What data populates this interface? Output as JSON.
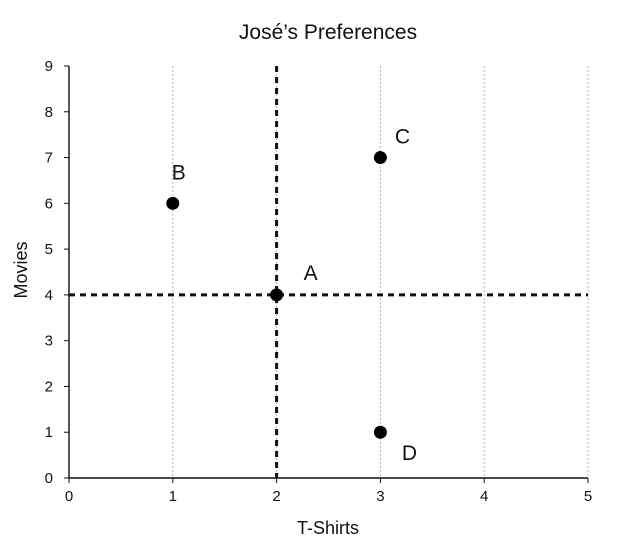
{
  "chart_data": {
    "type": "scatter",
    "title": "José’s Preferences",
    "xlabel": "T-Shirts",
    "ylabel": "Movies",
    "xlim": [
      0,
      5
    ],
    "ylim": [
      0,
      9
    ],
    "xticks": [
      0,
      1,
      2,
      3,
      4,
      5
    ],
    "yticks": [
      0,
      1,
      2,
      3,
      4,
      5,
      6,
      7,
      8,
      9
    ],
    "grid": true,
    "points": [
      {
        "label": "A",
        "x": 2,
        "y": 4
      },
      {
        "label": "B",
        "x": 1,
        "y": 6
      },
      {
        "label": "C",
        "x": 3,
        "y": 7
      },
      {
        "label": "D",
        "x": 3,
        "y": 1
      }
    ],
    "reference_lines": [
      {
        "orientation": "vertical",
        "value": 2,
        "style": "dashed"
      },
      {
        "orientation": "horizontal",
        "value": 4,
        "style": "dashed"
      }
    ]
  }
}
